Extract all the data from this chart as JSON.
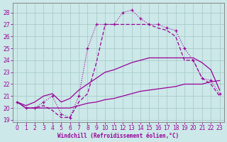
{
  "xlabel": "Windchill (Refroidissement éolien,°C)",
  "background_color": "#cce8e8",
  "grid_color": "#aacccc",
  "line_color": "#990099",
  "hours": [
    0,
    1,
    2,
    3,
    4,
    5,
    6,
    7,
    8,
    9,
    10,
    11,
    12,
    13,
    14,
    15,
    16,
    17,
    18,
    19,
    20,
    21,
    22,
    23
  ],
  "temp": [
    20.5,
    20.0,
    20.0,
    20.5,
    21.0,
    19.5,
    19.2,
    21.0,
    25.0,
    27.0,
    27.0,
    27.0,
    28.0,
    28.2,
    27.5,
    27.0,
    27.0,
    26.7,
    26.5,
    25.0,
    24.0,
    22.5,
    22.3,
    21.2
  ],
  "windchill_dash": [
    20.5,
    20.0,
    20.0,
    20.2,
    19.8,
    19.2,
    19.2,
    20.5,
    21.2,
    23.8,
    27.0,
    27.0,
    27.0,
    27.0,
    27.0,
    27.0,
    26.7,
    26.5,
    26.0,
    24.0,
    24.0,
    22.5,
    22.0,
    21.0
  ],
  "wc_upper": [
    20.5,
    20.2,
    20.5,
    21.0,
    21.2,
    20.5,
    20.8,
    21.5,
    22.0,
    22.5,
    23.0,
    23.2,
    23.5,
    23.8,
    24.0,
    24.2,
    24.2,
    24.2,
    24.2,
    24.2,
    24.2,
    23.8,
    23.2,
    21.5
  ],
  "wc_lower": [
    20.5,
    20.0,
    20.0,
    20.0,
    20.0,
    20.0,
    20.0,
    20.2,
    20.4,
    20.5,
    20.7,
    20.8,
    21.0,
    21.2,
    21.4,
    21.5,
    21.6,
    21.7,
    21.8,
    22.0,
    22.0,
    22.0,
    22.2,
    22.3
  ],
  "xlim": [
    -0.5,
    23.5
  ],
  "ylim": [
    18.8,
    28.8
  ],
  "xticks": [
    0,
    1,
    2,
    3,
    4,
    5,
    6,
    7,
    8,
    9,
    10,
    11,
    12,
    13,
    14,
    15,
    16,
    17,
    18,
    19,
    20,
    21,
    22,
    23
  ],
  "yticks": [
    19,
    20,
    21,
    22,
    23,
    24,
    25,
    26,
    27,
    28
  ]
}
